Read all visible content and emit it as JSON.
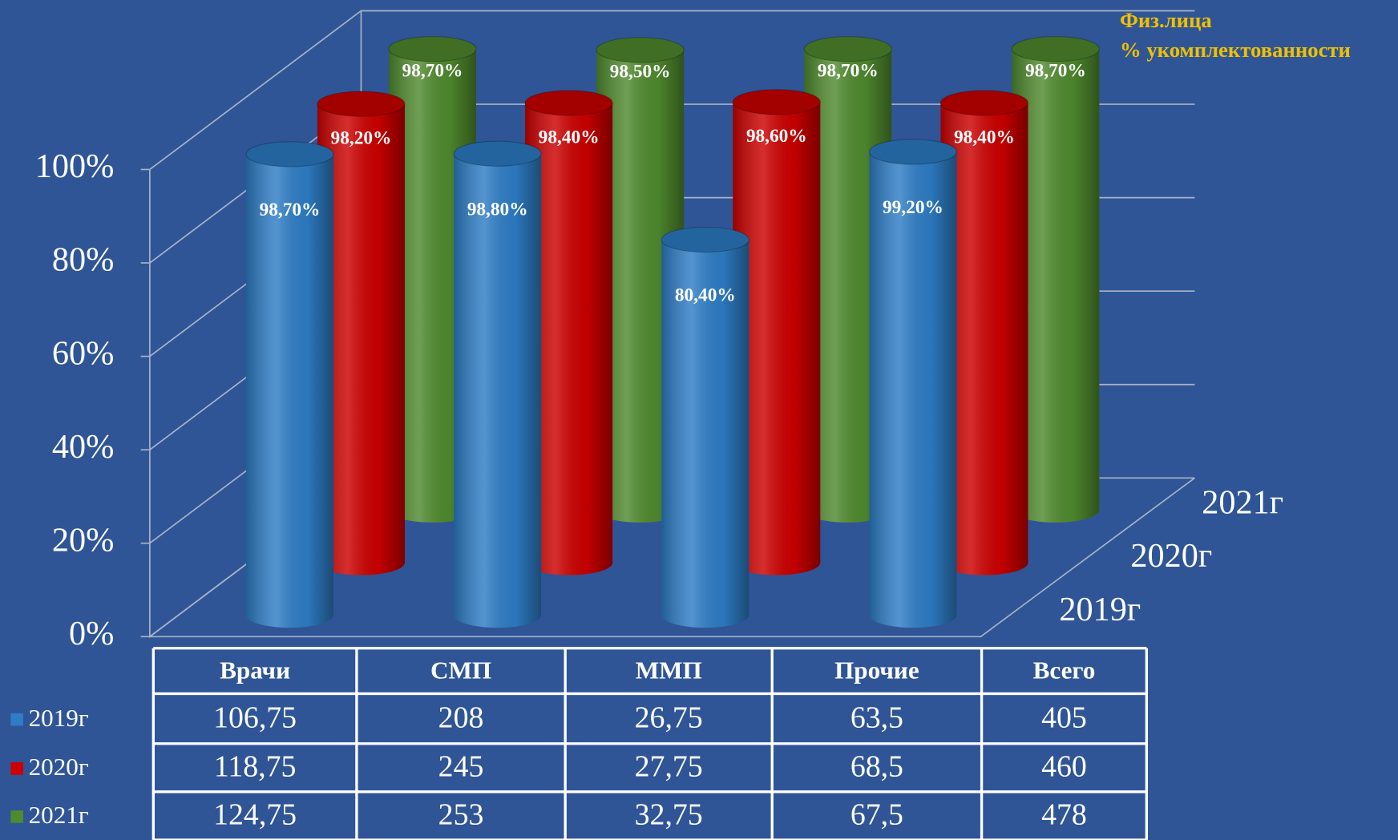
{
  "chart_data": {
    "type": "bar",
    "title": "Физ.лица",
    "subtitle": "% укомплектованности",
    "categories": [
      "Врачи",
      "СМП",
      "ММП",
      "Прочие"
    ],
    "series": [
      {
        "name": "2019г",
        "color": "#2e7dc6",
        "values": [
          98.7,
          98.8,
          80.4,
          99.2
        ],
        "value_labels": [
          "98,70%",
          "98,80%",
          "80,40%",
          "99,20%"
        ]
      },
      {
        "name": "2020г",
        "color": "#cc0000",
        "values": [
          98.2,
          98.4,
          98.6,
          98.4
        ],
        "value_labels": [
          "98,20%",
          "98,40%",
          "98,60%",
          "98,40%"
        ]
      },
      {
        "name": "2021г",
        "color": "#4f8a2e",
        "values": [
          98.7,
          98.5,
          98.7,
          98.7
        ],
        "value_labels": [
          "98,70%",
          "98,50%",
          "98,70%",
          "98,70%"
        ]
      }
    ],
    "ylim": [
      0,
      100
    ],
    "yticks": [
      {
        "value": 0,
        "label": "0%"
      },
      {
        "value": 20,
        "label": "20%"
      },
      {
        "value": 40,
        "label": "40%"
      },
      {
        "value": 60,
        "label": "60%"
      },
      {
        "value": 80,
        "label": "80%"
      },
      {
        "value": 100,
        "label": "100%"
      }
    ],
    "grid": true
  },
  "table": {
    "columns": [
      "Врачи",
      "СМП",
      "ММП",
      "Прочие",
      "Всего"
    ],
    "rows": [
      [
        "106,75",
        "208",
        "26,75",
        "63,5",
        "405"
      ],
      [
        "118,75",
        "245",
        "27,75",
        "68,5",
        "460"
      ],
      [
        "124,75",
        "253",
        "32,75",
        "67,5",
        "478"
      ]
    ]
  }
}
